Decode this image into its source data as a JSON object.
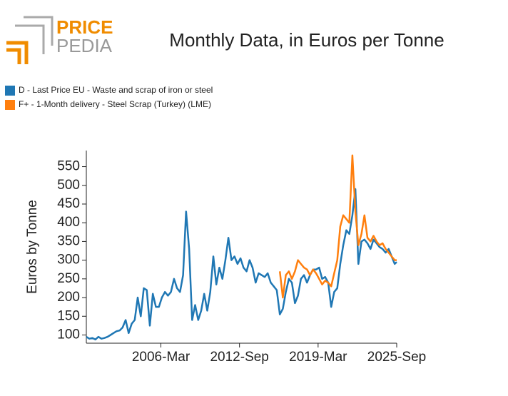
{
  "logo": {
    "top": "PRICE",
    "bottom": "PEDIA"
  },
  "chart_data": {
    "type": "line",
    "title": "Monthly Data, in Euros per Tonne",
    "y_label": "Euros by Tonne",
    "x": [
      "2000-01",
      "2000-04",
      "2000-07",
      "2000-10",
      "2001-01",
      "2001-04",
      "2001-07",
      "2001-10",
      "2002-01",
      "2002-04",
      "2002-07",
      "2002-10",
      "2003-01",
      "2003-04",
      "2003-07",
      "2003-10",
      "2004-01",
      "2004-04",
      "2004-07",
      "2004-10",
      "2005-01",
      "2005-04",
      "2005-07",
      "2005-10",
      "2006-01",
      "2006-04",
      "2006-07",
      "2006-10",
      "2007-01",
      "2007-04",
      "2007-07",
      "2007-10",
      "2008-01",
      "2008-04",
      "2008-07",
      "2008-10",
      "2009-01",
      "2009-04",
      "2009-07",
      "2009-10",
      "2010-01",
      "2010-04",
      "2010-07",
      "2010-10",
      "2011-01",
      "2011-04",
      "2011-07",
      "2011-10",
      "2012-01",
      "2012-04",
      "2012-07",
      "2012-10",
      "2013-01",
      "2013-04",
      "2013-07",
      "2013-10",
      "2014-01",
      "2014-04",
      "2014-07",
      "2014-10",
      "2015-01",
      "2015-04",
      "2015-07",
      "2015-10",
      "2016-01",
      "2016-04",
      "2016-07",
      "2016-10",
      "2017-01",
      "2017-04",
      "2017-07",
      "2017-10",
      "2018-01",
      "2018-04",
      "2018-07",
      "2018-10",
      "2019-01",
      "2019-04",
      "2019-07",
      "2019-10",
      "2020-01",
      "2020-04",
      "2020-07",
      "2020-10",
      "2021-01",
      "2021-04",
      "2021-07",
      "2021-10",
      "2022-01",
      "2022-04",
      "2022-07",
      "2022-10",
      "2023-01",
      "2023-04",
      "2023-07",
      "2023-10",
      "2024-01",
      "2024-04",
      "2024-07",
      "2024-10",
      "2025-01",
      "2025-04",
      "2025-07",
      "2025-09"
    ],
    "series": [
      {
        "name": "D - Last Price EU - Waste and scrap of iron or steel",
        "color": "#1f77b4",
        "values": [
          95,
          90,
          92,
          88,
          95,
          90,
          92,
          95,
          100,
          105,
          110,
          112,
          120,
          140,
          105,
          130,
          140,
          200,
          150,
          225,
          220,
          125,
          210,
          175,
          175,
          200,
          215,
          205,
          215,
          250,
          225,
          215,
          260,
          430,
          330,
          140,
          180,
          140,
          165,
          210,
          165,
          215,
          310,
          235,
          280,
          250,
          300,
          360,
          300,
          310,
          290,
          305,
          280,
          270,
          300,
          280,
          240,
          265,
          260,
          255,
          265,
          240,
          230,
          220,
          155,
          170,
          215,
          250,
          240,
          185,
          205,
          250,
          260,
          240,
          260,
          275,
          275,
          280,
          250,
          255,
          240,
          175,
          215,
          225,
          290,
          340,
          380,
          370,
          420,
          490,
          290,
          350,
          355,
          345,
          330,
          355,
          345,
          335,
          330,
          320,
          330,
          310,
          290,
          295
        ]
      },
      {
        "name": "F+ - 1-Month delivery - Steel Scrap (Turkey) (LME)",
        "color": "#ff7f0e",
        "values": [
          null,
          null,
          null,
          null,
          null,
          null,
          null,
          null,
          null,
          null,
          null,
          null,
          null,
          null,
          null,
          null,
          null,
          null,
          null,
          null,
          null,
          null,
          null,
          null,
          null,
          null,
          null,
          null,
          null,
          null,
          null,
          null,
          null,
          null,
          null,
          null,
          null,
          null,
          null,
          null,
          null,
          null,
          null,
          null,
          null,
          null,
          null,
          null,
          null,
          null,
          null,
          null,
          null,
          null,
          null,
          null,
          null,
          null,
          null,
          null,
          null,
          null,
          null,
          null,
          270,
          200,
          260,
          270,
          250,
          270,
          300,
          290,
          280,
          275,
          260,
          275,
          265,
          250,
          235,
          245,
          240,
          230,
          265,
          300,
          390,
          420,
          410,
          400,
          580,
          430,
          340,
          370,
          420,
          360,
          350,
          365,
          350,
          340,
          345,
          330,
          320,
          310,
          300,
          300
        ]
      }
    ],
    "xlim": [
      "2000-01",
      "2025-09"
    ],
    "xticks": [
      {
        "value": "2006-03",
        "label": "2006-Mar"
      },
      {
        "value": "2012-09",
        "label": "2012-Sep"
      },
      {
        "value": "2019-03",
        "label": "2019-Mar"
      },
      {
        "value": "2025-09",
        "label": "2025-Sep"
      }
    ],
    "ylim": [
      78,
      593
    ],
    "yticks": [
      100,
      150,
      200,
      250,
      300,
      350,
      400,
      450,
      500,
      550
    ]
  }
}
